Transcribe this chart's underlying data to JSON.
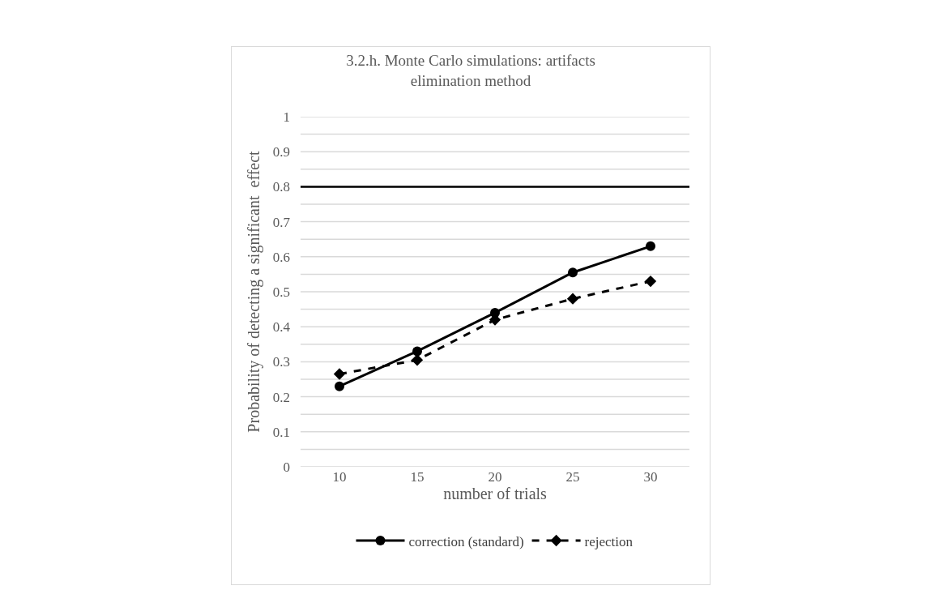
{
  "chart_data": {
    "type": "line",
    "title": "3.2.h. Monte Carlo simulations: artifacts\nelimination method",
    "xlabel": "number of trials",
    "ylabel": "Probability of detecting a significant  effect",
    "categories": [
      "10",
      "15",
      "20",
      "25",
      "30"
    ],
    "series": [
      {
        "name": "correction (standard)",
        "color": "#000000",
        "values": [
          0.23,
          0.33,
          0.44,
          0.555,
          0.63
        ],
        "marker": "circle",
        "line_style": "solid"
      },
      {
        "name": "rejection",
        "color": "#000000",
        "values": [
          0.265,
          0.305,
          0.42,
          0.48,
          0.53
        ],
        "marker": "diamond",
        "line_style": "dashed"
      }
    ],
    "ylim": [
      0,
      1
    ],
    "yticks": [
      0,
      {
        "value": 0.05,
        "label": null
      },
      0.1,
      {
        "value": 0.15,
        "label": null
      },
      0.2,
      {
        "value": 0.25,
        "label": null
      },
      0.3,
      {
        "value": 0.35,
        "label": null
      },
      0.4,
      {
        "value": 0.45,
        "label": null
      },
      0.5,
      {
        "value": 0.55,
        "label": null
      },
      0.6,
      {
        "value": 0.65,
        "label": null
      },
      0.7,
      {
        "value": 0.75,
        "label": null
      },
      0.8,
      {
        "value": 0.85,
        "label": null
      },
      0.9,
      {
        "value": 0.95,
        "label": null
      },
      1
    ],
    "ref_lines": [
      {
        "axis": "y",
        "value": 0.8,
        "color": "#000000",
        "line_style": "solid"
      }
    ],
    "grid": "y",
    "legend": "bottom"
  }
}
